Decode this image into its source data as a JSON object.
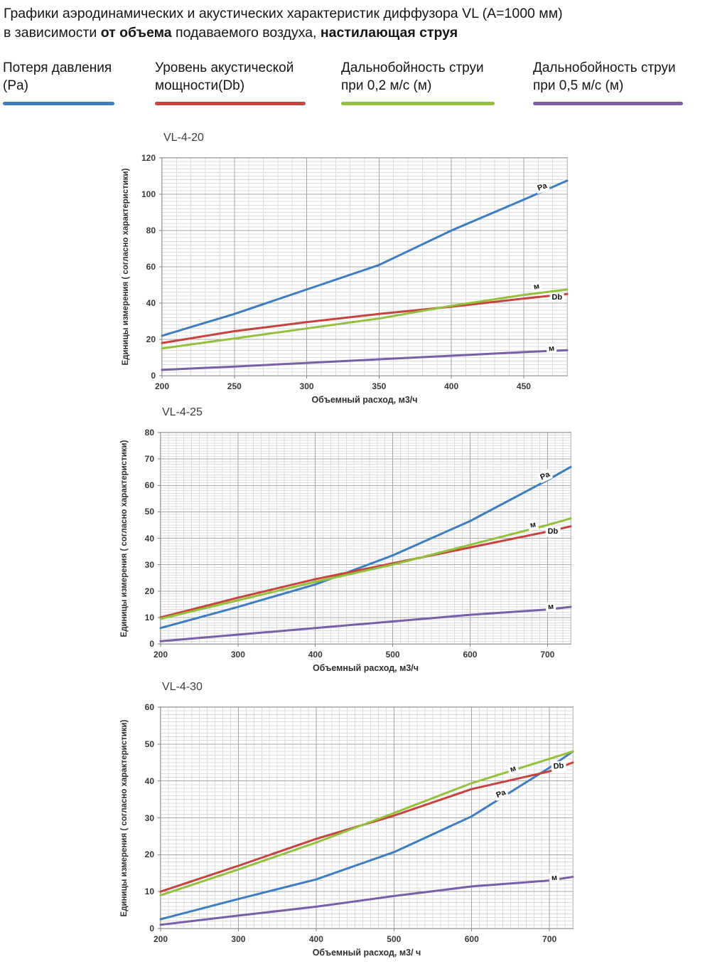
{
  "page_title": {
    "line1": "Графики аэродинамических и акустических характеристик  диффузора VL (А=1000 мм)",
    "line2": [
      {
        "text": "в зависимости "
      },
      {
        "text": "от объема"
      },
      {
        "text": " подаваемого воздуха, "
      },
      {
        "text": "настилающая струя"
      }
    ]
  },
  "legend": {
    "items": [
      {
        "line1": "Потеря давления",
        "line2": "(Pa)",
        "color": "#3e7dc0"
      },
      {
        "line1": "Уровень акустической",
        "line2": "мощности(Db)",
        "color": "#c7433e"
      },
      {
        "line1": "Дальнобойность струи",
        "line2": "при 0,2 м/с (м)",
        "color": "#93c13e"
      },
      {
        "line1": "Дальнобойность струи",
        "line2": "при 0,5 м/с (м)",
        "color": "#7b5ea8"
      }
    ]
  },
  "chart_data": [
    {
      "type": "line",
      "title": "VL-4-20",
      "xlabel": "Объемный расход, м3/ч",
      "ylabel": "Единицы измерения ( согласно характеристики)",
      "xlim": [
        200,
        480
      ],
      "ylim": [
        0,
        120
      ],
      "x_ticks": [
        200,
        250,
        300,
        350,
        400,
        450
      ],
      "y_ticks": [
        0,
        20,
        40,
        60,
        80,
        100,
        120
      ],
      "minor_x_step": 10,
      "minor_y_step": 2,
      "grid": true,
      "series": [
        {
          "name": "Потеря давления (Pa)",
          "color": "#3e7dc0",
          "points": [
            [
              200,
              22
            ],
            [
              250,
              34
            ],
            [
              300,
              47.5
            ],
            [
              350,
              61
            ],
            [
              400,
              80
            ],
            [
              450,
              97
            ],
            [
              480,
              107.5
            ]
          ],
          "label": {
            "text": "Pa",
            "x": 463,
            "y": 104,
            "rot": -20
          }
        },
        {
          "name": "Уровень акустической мощности (Db)",
          "color": "#c7433e",
          "points": [
            [
              200,
              18
            ],
            [
              250,
              24.5
            ],
            [
              300,
              29.5
            ],
            [
              350,
              34
            ],
            [
              400,
              38
            ],
            [
              450,
              42.5
            ],
            [
              480,
              45
            ]
          ],
          "label": {
            "text": "Db",
            "x": 473,
            "y": 43,
            "rot": 0
          }
        },
        {
          "name": "Дальнобойность струи при 0,2 м/с (м)",
          "color": "#93c13e",
          "points": [
            [
              200,
              15
            ],
            [
              250,
              20.5
            ],
            [
              300,
              26
            ],
            [
              350,
              31.5
            ],
            [
              400,
              38.5
            ],
            [
              450,
              44.5
            ],
            [
              480,
              47.5
            ]
          ],
          "label": {
            "text": "м",
            "x": 459,
            "y": 49,
            "rot": -10
          }
        },
        {
          "name": "Дальнобойность струи при 0,5 м/с (м)",
          "color": "#7b5ea8",
          "points": [
            [
              200,
              3.2
            ],
            [
              250,
              5
            ],
            [
              300,
              7
            ],
            [
              350,
              9
            ],
            [
              400,
              11
            ],
            [
              450,
              13
            ],
            [
              480,
              14
            ]
          ],
          "label": {
            "text": "м",
            "x": 469,
            "y": 15,
            "rot": -5
          }
        }
      ]
    },
    {
      "type": "line",
      "title": "VL-4-25",
      "xlabel": "Объемный расход, м3/ч",
      "ylabel": "Единицы измерения ( согласно характеристики)",
      "xlim": [
        200,
        730
      ],
      "ylim": [
        0,
        80
      ],
      "x_ticks": [
        200,
        300,
        400,
        500,
        600,
        700
      ],
      "y_ticks": [
        0,
        10,
        20,
        30,
        40,
        50,
        60,
        70,
        80
      ],
      "minor_x_step": 10,
      "minor_y_step": 1,
      "grid": true,
      "series": [
        {
          "name": "Потеря давления (Pa)",
          "color": "#3e7dc0",
          "points": [
            [
              200,
              6
            ],
            [
              300,
              14
            ],
            [
              400,
              22.5
            ],
            [
              500,
              33.5
            ],
            [
              600,
              46.5
            ],
            [
              700,
              62
            ],
            [
              730,
              67
            ]
          ],
          "label": {
            "text": "Pa",
            "x": 697,
            "y": 63.5,
            "rot": -25
          }
        },
        {
          "name": "Уровень акустической мощности (Db)",
          "color": "#c7433e",
          "points": [
            [
              200,
              10
            ],
            [
              300,
              17.5
            ],
            [
              400,
              24.5
            ],
            [
              500,
              30.5
            ],
            [
              600,
              36.5
            ],
            [
              700,
              42.5
            ],
            [
              730,
              44.5
            ]
          ],
          "label": {
            "text": "Db",
            "x": 707,
            "y": 42.6,
            "rot": 0
          }
        },
        {
          "name": "Дальнобойность струи при 0,2 м/с (м)",
          "color": "#93c13e",
          "points": [
            [
              200,
              9.5
            ],
            [
              300,
              16.5
            ],
            [
              400,
              23.5
            ],
            [
              500,
              30
            ],
            [
              600,
              37.5
            ],
            [
              700,
              45
            ],
            [
              730,
              47.5
            ]
          ],
          "label": {
            "text": "м",
            "x": 681,
            "y": 45,
            "rot": -10
          }
        },
        {
          "name": "Дальнобойность струи при 0,5 м/с (м)",
          "color": "#7b5ea8",
          "points": [
            [
              200,
              1
            ],
            [
              300,
              3.5
            ],
            [
              400,
              6
            ],
            [
              500,
              8.5
            ],
            [
              600,
              11
            ],
            [
              700,
              13
            ],
            [
              730,
              14
            ]
          ],
          "label": {
            "text": "м",
            "x": 704,
            "y": 13.9,
            "rot": -5
          }
        }
      ]
    },
    {
      "type": "line",
      "title": "VL-4-30",
      "xlabel": "Объемный расход, м3/ ч",
      "ylabel": "Единицы измерения ( согласно характеристики)",
      "xlim": [
        200,
        730
      ],
      "ylim": [
        0,
        60
      ],
      "x_ticks": [
        200,
        300,
        400,
        500,
        600,
        700
      ],
      "y_ticks": [
        0,
        10,
        20,
        30,
        40,
        50,
        60
      ],
      "minor_x_step": 10,
      "minor_y_step": 1,
      "grid": true,
      "series": [
        {
          "name": "Потеря давления (Pa)",
          "color": "#3e7dc0",
          "points": [
            [
              200,
              2.5
            ],
            [
              300,
              8
            ],
            [
              400,
              13.3
            ],
            [
              500,
              20.7
            ],
            [
              600,
              30.4
            ],
            [
              700,
              43.6
            ],
            [
              730,
              48
            ]
          ],
          "label": {
            "text": "Pa",
            "x": 638,
            "y": 36.5,
            "rot": -22
          }
        },
        {
          "name": "Уровень акустической мощности (Db)",
          "color": "#c7433e",
          "points": [
            [
              200,
              10
            ],
            [
              300,
              17
            ],
            [
              400,
              24.3
            ],
            [
              500,
              30.6
            ],
            [
              600,
              37.8
            ],
            [
              700,
              42.6
            ],
            [
              730,
              45
            ]
          ],
          "label": {
            "text": "Db",
            "x": 712,
            "y": 44,
            "rot": -5
          }
        },
        {
          "name": "Дальнобойность струи при 0,2 м/с (м)",
          "color": "#93c13e",
          "points": [
            [
              200,
              9
            ],
            [
              300,
              16
            ],
            [
              400,
              23.3
            ],
            [
              500,
              31.3
            ],
            [
              600,
              39.4
            ],
            [
              700,
              46
            ],
            [
              730,
              48
            ]
          ],
          "label": {
            "text": "м",
            "x": 653,
            "y": 43.2,
            "rot": -18
          }
        },
        {
          "name": "Дальнобойность струи при 0,5 м/с (м)",
          "color": "#7b5ea8",
          "points": [
            [
              200,
              1
            ],
            [
              300,
              3.5
            ],
            [
              400,
              5.9
            ],
            [
              500,
              8.8
            ],
            [
              600,
              11.4
            ],
            [
              700,
              13
            ],
            [
              730,
              14
            ]
          ],
          "label": {
            "text": "м",
            "x": 706,
            "y": 13.7,
            "rot": -5
          }
        }
      ]
    }
  ]
}
